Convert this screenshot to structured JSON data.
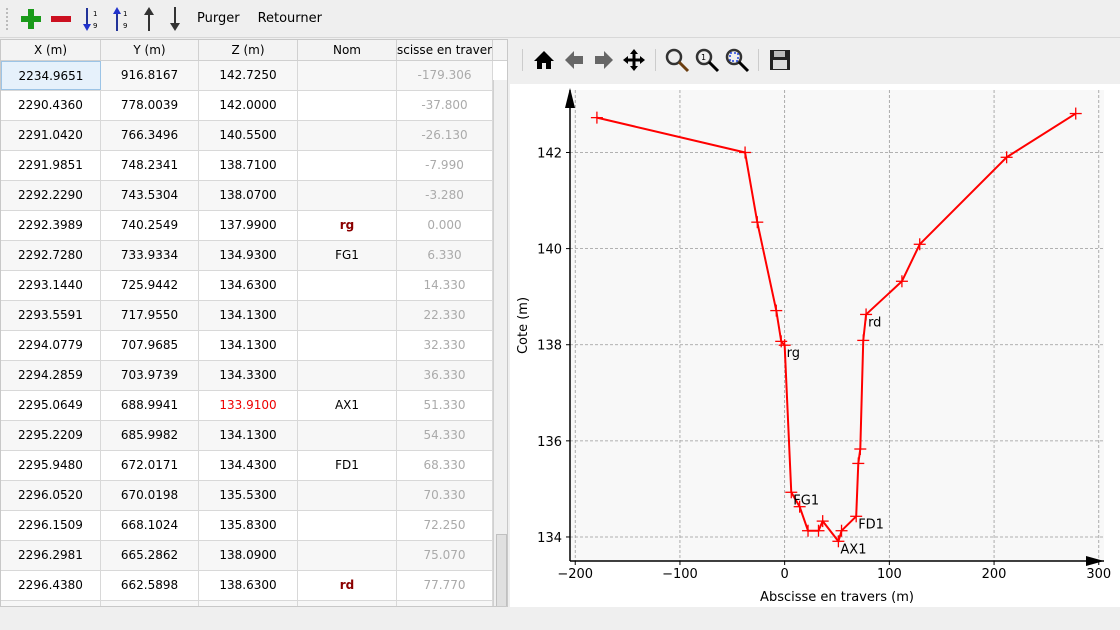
{
  "toolbar": {
    "items": [
      {
        "name": "add-row-button",
        "icon": "plus-icon"
      },
      {
        "name": "delete-row-button",
        "icon": "minus-icon"
      },
      {
        "name": "sort-ascending-button",
        "icon": "sort-ascending-icon"
      },
      {
        "name": "sort-descending-button",
        "icon": "sort-descending-icon"
      },
      {
        "name": "move-up-button",
        "icon": "arrow-up-icon"
      },
      {
        "name": "move-down-button",
        "icon": "arrow-down-icon"
      }
    ],
    "purge_label": "Purger",
    "reverse_label": "Retourner"
  },
  "table": {
    "columns": [
      "X (m)",
      "Y (m)",
      "Z (m)",
      "Nom",
      "scisse en travers"
    ],
    "rows": [
      [
        "2234.9651",
        "916.8167",
        "142.7250",
        "",
        "-179.306"
      ],
      [
        "2290.4360",
        "778.0039",
        "142.0000",
        "",
        "-37.800"
      ],
      [
        "2291.0420",
        "766.3496",
        "140.5500",
        "",
        "-26.130"
      ],
      [
        "2291.9851",
        "748.2341",
        "138.7100",
        "",
        "-7.990"
      ],
      [
        "2292.2290",
        "743.5304",
        "138.0700",
        "",
        "-3.280"
      ],
      [
        "2292.3989",
        "740.2549",
        "137.9900",
        "rg",
        "0.000"
      ],
      [
        "2292.7280",
        "733.9334",
        "134.9300",
        "FG1",
        "6.330"
      ],
      [
        "2293.1440",
        "725.9442",
        "134.6300",
        "",
        "14.330"
      ],
      [
        "2293.5591",
        "717.9550",
        "134.1300",
        "",
        "22.330"
      ],
      [
        "2294.0779",
        "707.9685",
        "134.1300",
        "",
        "32.330"
      ],
      [
        "2294.2859",
        "703.9739",
        "134.3300",
        "",
        "36.330"
      ],
      [
        "2295.0649",
        "688.9941",
        "133.9100",
        "AX1",
        "51.330"
      ],
      [
        "2295.2209",
        "685.9982",
        "134.1300",
        "",
        "54.330"
      ],
      [
        "2295.9480",
        "672.0171",
        "134.4300",
        "FD1",
        "68.330"
      ],
      [
        "2296.0520",
        "670.0198",
        "135.5300",
        "",
        "70.330"
      ],
      [
        "2296.1509",
        "668.1024",
        "135.8300",
        "",
        "72.250"
      ],
      [
        "2296.2981",
        "665.2862",
        "138.0900",
        "",
        "75.070"
      ],
      [
        "2296.4380",
        "662.5898",
        "138.6300",
        "rd",
        "77.770"
      ]
    ],
    "highlight_z_row": 11,
    "selected_row": 0
  },
  "plot_toolbar": [
    "home-icon",
    "back-icon",
    "forward-icon",
    "pan-icon",
    "zoom-icon",
    "zoom-1-icon",
    "zoom-fit-icon",
    "save-icon"
  ],
  "chart_data": {
    "type": "line",
    "xlabel": "Abscisse en travers (m)",
    "ylabel": "Cote (m)",
    "xlim": [
      -205,
      305
    ],
    "ylim": [
      133.5,
      143.3
    ],
    "xticks": [
      -200,
      -100,
      0,
      100,
      200,
      300
    ],
    "xtick_labels": [
      "−200",
      "−100",
      "0",
      "100",
      "200",
      "300"
    ],
    "yticks": [
      134,
      136,
      138,
      140,
      142
    ],
    "ytick_labels": [
      "134",
      "136",
      "138",
      "140",
      "142"
    ],
    "grid": true,
    "color": "#ff0000",
    "marker": "+",
    "x": [
      -179.306,
      -37.8,
      -26.13,
      -7.99,
      -3.28,
      0,
      6.33,
      14.33,
      22.33,
      32.33,
      36.33,
      51.33,
      54.33,
      68.33,
      70.33,
      72.25,
      75.07,
      77.77,
      112,
      129,
      212,
      278
    ],
    "y": [
      142.725,
      142.0,
      140.55,
      138.71,
      138.07,
      137.99,
      134.93,
      134.63,
      134.13,
      134.13,
      134.33,
      133.91,
      134.13,
      134.43,
      135.53,
      135.83,
      138.09,
      138.63,
      139.32,
      140.09,
      141.9,
      142.81
    ],
    "annotations": [
      {
        "text": "rg",
        "x": 0,
        "y": 137.99
      },
      {
        "text": "FG1",
        "x": 6.33,
        "y": 134.93
      },
      {
        "text": "AX1",
        "x": 51.33,
        "y": 133.91
      },
      {
        "text": "FD1",
        "x": 68.33,
        "y": 134.43
      },
      {
        "text": "rd",
        "x": 77.77,
        "y": 138.63
      }
    ]
  }
}
